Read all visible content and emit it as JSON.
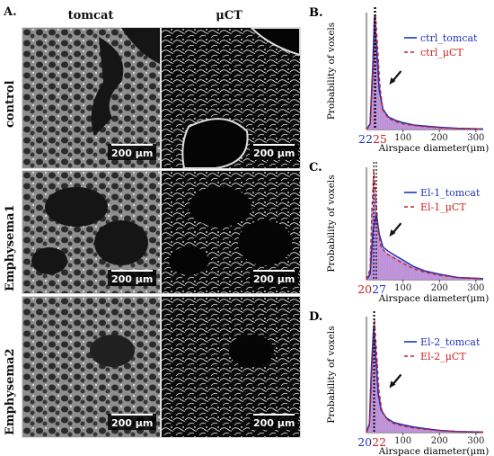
{
  "panel_A": {
    "letter": "A.",
    "columns": [
      "tomcat",
      "μCT"
    ],
    "rows": [
      "control",
      "Emphysema1",
      "Emphysema2"
    ],
    "scale_bar": "200 μm"
  },
  "chart_data": [
    {
      "panel": "B.",
      "type": "area",
      "xlabel": "Airspace diameter(μm)",
      "ylabel": "Probability of voxels",
      "xlim": [
        0,
        320
      ],
      "xticks": [
        100,
        200,
        300
      ],
      "peak_labels": [
        {
          "text": "22",
          "color": "#2233bb"
        },
        {
          "text": "25",
          "color": "#cc2222"
        }
      ],
      "legend": [
        "ctrl_tomcat",
        "ctrl_μCT"
      ],
      "legend_colors": [
        "#2233bb",
        "#cc2222"
      ],
      "series": [
        {
          "name": "ctrl_tomcat",
          "x": [
            0,
            10,
            18,
            22,
            28,
            35,
            45,
            60,
            80,
            100,
            130,
            160,
            200,
            250,
            320
          ],
          "y": [
            0.0,
            0.05,
            0.6,
            1.0,
            0.7,
            0.35,
            0.18,
            0.11,
            0.08,
            0.06,
            0.04,
            0.03,
            0.02,
            0.01,
            0.005
          ]
        },
        {
          "name": "ctrl_μCT",
          "x": [
            0,
            10,
            18,
            25,
            30,
            37,
            45,
            60,
            80,
            100,
            130,
            160,
            200,
            250,
            320
          ],
          "y": [
            0.0,
            0.04,
            0.5,
            1.0,
            0.75,
            0.38,
            0.17,
            0.1,
            0.07,
            0.05,
            0.035,
            0.025,
            0.015,
            0.008,
            0.004
          ]
        }
      ]
    },
    {
      "panel": "C.",
      "type": "area",
      "xlabel": "Airspace diameter(μm)",
      "ylabel": "Probability of voxels",
      "xlim": [
        0,
        320
      ],
      "xticks": [
        100,
        200,
        300
      ],
      "peak_labels": [
        {
          "text": "20",
          "color": "#cc2222"
        },
        {
          "text": "27",
          "color": "#2233bb"
        }
      ],
      "legend": [
        "El-1_tomcat",
        "El-1_μCT"
      ],
      "legend_colors": [
        "#2233bb",
        "#cc2222"
      ],
      "series": [
        {
          "name": "El-1_tomcat",
          "x": [
            0,
            10,
            18,
            27,
            35,
            45,
            60,
            80,
            100,
            130,
            160,
            200,
            250,
            320
          ],
          "y": [
            0.0,
            0.05,
            0.45,
            0.6,
            0.42,
            0.3,
            0.26,
            0.22,
            0.18,
            0.12,
            0.08,
            0.05,
            0.02,
            0.01
          ]
        },
        {
          "name": "El-1_μCT",
          "x": [
            0,
            10,
            15,
            20,
            26,
            32,
            40,
            55,
            75,
            100,
            130,
            160,
            200,
            250,
            320
          ],
          "y": [
            0.0,
            0.1,
            0.65,
            1.0,
            0.75,
            0.45,
            0.3,
            0.24,
            0.2,
            0.15,
            0.1,
            0.07,
            0.04,
            0.02,
            0.01
          ]
        }
      ]
    },
    {
      "panel": "D.",
      "type": "area",
      "xlabel": "Airspace diameter(μm)",
      "ylabel": "Probability of voxels",
      "xlim": [
        0,
        320
      ],
      "xticks": [
        100,
        200,
        300
      ],
      "peak_labels": [
        {
          "text": "20",
          "color": "#2233bb"
        },
        {
          "text": "22",
          "color": "#cc2222"
        }
      ],
      "legend": [
        "El-2_tomcat",
        "El-2_μCT"
      ],
      "legend_colors": [
        "#2233bb",
        "#cc2222"
      ],
      "series": [
        {
          "name": "El-2_tomcat",
          "x": [
            0,
            8,
            14,
            20,
            26,
            32,
            40,
            55,
            75,
            100,
            130,
            160,
            200,
            250,
            320
          ],
          "y": [
            0.0,
            0.08,
            0.6,
            0.95,
            0.65,
            0.35,
            0.2,
            0.13,
            0.09,
            0.07,
            0.05,
            0.035,
            0.02,
            0.01,
            0.005
          ]
        },
        {
          "name": "El-2_μCT",
          "x": [
            0,
            8,
            15,
            22,
            28,
            34,
            42,
            55,
            75,
            100,
            130,
            160,
            200,
            250,
            320
          ],
          "y": [
            0.0,
            0.06,
            0.55,
            1.0,
            0.7,
            0.38,
            0.2,
            0.12,
            0.08,
            0.06,
            0.04,
            0.03,
            0.018,
            0.009,
            0.004
          ]
        }
      ]
    }
  ]
}
